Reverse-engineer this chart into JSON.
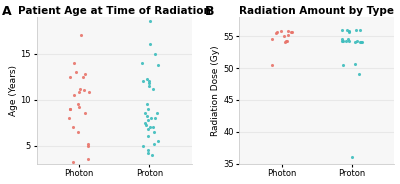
{
  "title_A": "Patient Age at Time of Radiation",
  "title_B": "Radiation Amount by Type",
  "ylabel_A": "Age (Years)",
  "ylabel_B": "Radiation Dose (Gy)",
  "xlabel": [
    "Photon",
    "Proton"
  ],
  "label_A": "A",
  "label_B": "B",
  "ylim_A": [
    3,
    19
  ],
  "ylim_B": [
    35,
    58
  ],
  "yticks_A": [
    5,
    10,
    15
  ],
  "yticks_B": [
    35,
    40,
    45,
    50,
    55
  ],
  "photon_age": [
    9.0,
    8.5,
    9.5,
    11.0,
    10.8,
    11.2,
    9.2,
    9.0,
    10.5,
    10.8,
    12.5,
    12.8,
    13.0,
    12.5,
    14.0,
    5.0,
    7.0,
    6.5,
    5.2,
    8.0,
    17.0,
    3.5,
    3.2
  ],
  "proton_age": [
    18.5,
    13.8,
    14.0,
    16.0,
    15.0,
    11.2,
    11.5,
    12.0,
    12.0,
    12.2,
    11.8,
    9.5,
    8.5,
    8.0,
    8.5,
    8.0,
    7.5,
    7.8,
    7.2,
    7.0,
    8.2,
    9.0,
    6.5,
    6.0,
    5.5,
    5.0,
    5.2,
    4.5,
    4.2,
    4.0,
    7.0,
    6.8
  ],
  "photon_dose": [
    55.8,
    55.5,
    55.2,
    55.7,
    55.6,
    55.8,
    55.0,
    54.2,
    54.0,
    54.3,
    54.5,
    55.6,
    50.5
  ],
  "proton_dose": [
    56.0,
    55.8,
    55.9,
    56.0,
    55.7,
    56.0,
    54.2,
    54.0,
    54.3,
    54.5,
    54.0,
    54.2,
    54.3,
    54.1,
    54.0,
    54.5,
    54.2,
    49.0,
    50.5,
    50.6,
    36.0
  ],
  "color_photon": "#e8746a",
  "color_proton": "#3dbdbd",
  "bg_color": "#ffffff",
  "plot_bg": "#f7f7f7",
  "grid_color": "#e8e8e8",
  "spine_color": "#cccccc",
  "title_fontsize": 7.5,
  "label_fontsize": 6.5,
  "tick_fontsize": 6,
  "panel_fontsize": 9,
  "marker_size": 5
}
